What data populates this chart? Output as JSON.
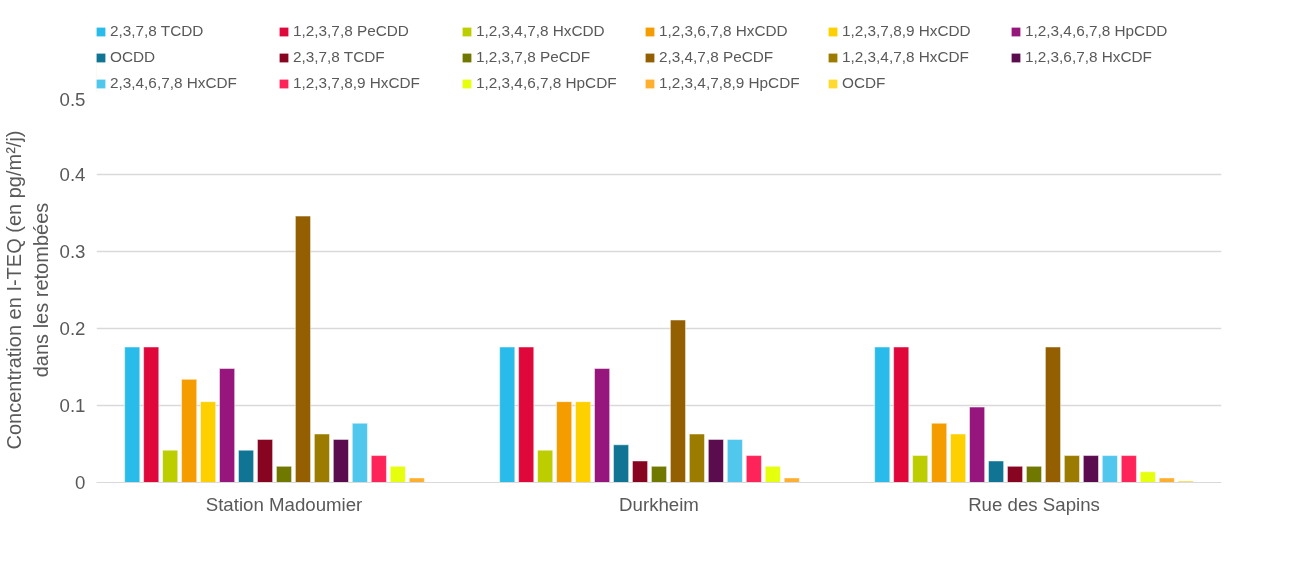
{
  "chart_data": {
    "type": "bar",
    "ylabel": "Concentration en I-TEQ (en pg/m²/j)\ndans les retombées",
    "categories": [
      "Station Madoumier",
      "Durkheim",
      "Rue des Sapins"
    ],
    "ylim": [
      0,
      0.5
    ],
    "yticks": [
      0,
      0.1,
      0.2,
      0.3,
      0.4,
      0.5
    ],
    "grid": "y",
    "legend": "top",
    "series": [
      {
        "name": "2,3,7,8 TCDD",
        "color": "#29bbe9",
        "values": [
          0.176,
          0.176,
          0.176
        ]
      },
      {
        "name": "1,2,3,7,8 PeCDD",
        "color": "#e0073b",
        "values": [
          0.176,
          0.176,
          0.176
        ]
      },
      {
        "name": "1,2,3,4,7,8 HxCDD",
        "color": "#bccd00",
        "values": [
          0.042,
          0.042,
          0.035
        ]
      },
      {
        "name": "1,2,3,6,7,8 HxCDD",
        "color": "#f59d00",
        "values": [
          0.134,
          0.105,
          0.077
        ]
      },
      {
        "name": "1,2,3,7,8,9 HxCDD",
        "color": "#fed000",
        "values": [
          0.105,
          0.105,
          0.063
        ]
      },
      {
        "name": "1,2,3,4,6,7,8 HpCDD",
        "color": "#96167e",
        "values": [
          0.148,
          0.148,
          0.098
        ]
      },
      {
        "name": "OCDD",
        "color": "#107594",
        "values": [
          0.042,
          0.049,
          0.028
        ]
      },
      {
        "name": "2,3,7,8 TCDF",
        "color": "#870521",
        "values": [
          0.056,
          0.028,
          0.021
        ]
      },
      {
        "name": "1,2,3,7,8 PeCDF",
        "color": "#707800",
        "values": [
          0.021,
          0.021,
          0.021
        ]
      },
      {
        "name": "2,3,4,7,8 PeCDF",
        "color": "#935f00",
        "values": [
          0.346,
          0.211,
          0.176
        ]
      },
      {
        "name": "1,2,3,4,7,8 HxCDF",
        "color": "#9b7c00",
        "values": [
          0.063,
          0.063,
          0.035
        ]
      },
      {
        "name": "1,2,3,6,7,8 HxCDF",
        "color": "#5b0c4e",
        "values": [
          0.056,
          0.056,
          0.035
        ]
      },
      {
        "name": "2,3,4,6,7,8 HxCDF",
        "color": "#52c7ee",
        "values": [
          0.077,
          0.056,
          0.035
        ]
      },
      {
        "name": "1,2,3,7,8,9 HxCDF",
        "color": "#fe2459",
        "values": [
          0.035,
          0.035,
          0.035
        ]
      },
      {
        "name": "1,2,3,4,6,7,8 HpCDF",
        "color": "#e5ff0d",
        "values": [
          0.021,
          0.021,
          0.014
        ]
      },
      {
        "name": "1,2,3,4,7,8,9 HpCDF",
        "color": "#feaf2f",
        "values": [
          0.006,
          0.006,
          0.006
        ]
      },
      {
        "name": "OCDF",
        "color": "#fed92f",
        "values": [
          null,
          null,
          0.002
        ]
      }
    ]
  }
}
